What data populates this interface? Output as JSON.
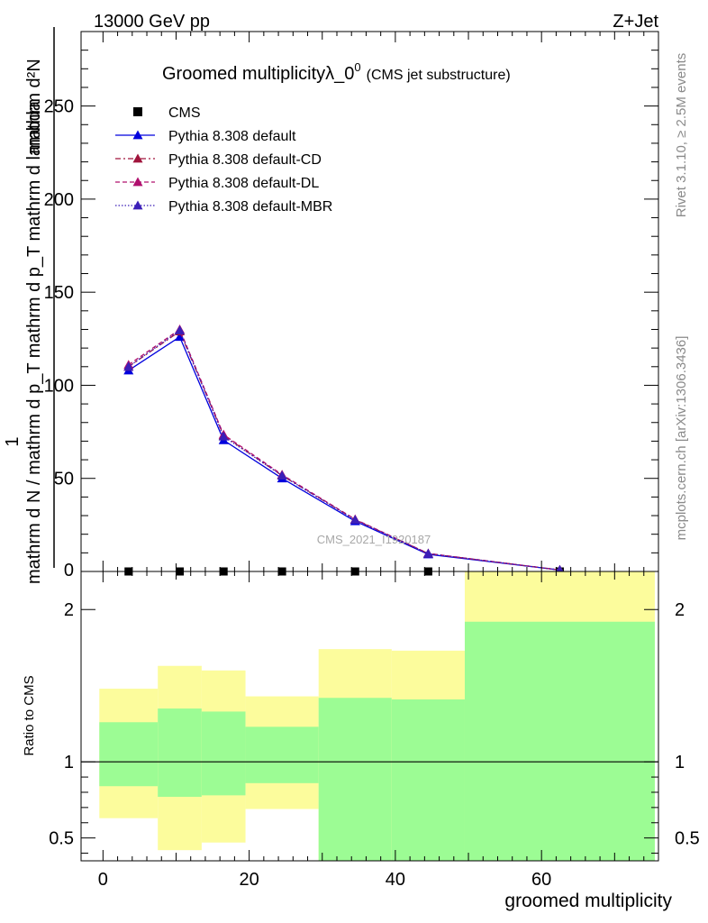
{
  "header": {
    "energy_label": "13000 GeV pp",
    "process_label": "Z+Jet"
  },
  "side_labels": {
    "rivet": "Rivet 3.1.10, ≥ 2.5M events",
    "mcplots": "mcplots.cern.ch [arXiv:1306.3436]"
  },
  "watermark": "CMS_2021_I1920187",
  "chart_data": [
    {
      "type": "line",
      "title": "Groomed multiplicityλ_0",
      "title_sup": "0",
      "title_suffix": "(CMS jet substructure)",
      "ylabel_numerator": "mathrm d²N",
      "ylabel_denominator": "mathrm d N / mathrm d p_T mathrm d p_T mathrm d lambda",
      "ylabel_prefix": "1",
      "xlim": [
        -3,
        76
      ],
      "ylim": [
        0,
        290
      ],
      "yticks": [
        "50",
        "100",
        "150",
        "200",
        "250"
      ],
      "ytick_values": [
        50,
        100,
        150,
        200,
        250
      ],
      "x": [
        3.5,
        10.5,
        16.5,
        24.5,
        34.5,
        44.5,
        62.5
      ],
      "series": [
        {
          "name": "CMS",
          "marker": "square",
          "color": "#000000",
          "values": [
            0,
            0,
            0,
            0,
            0,
            0,
            0
          ]
        },
        {
          "name": "Pythia 8.308 default",
          "marker": "triangle",
          "color": "#0000dd",
          "dash": "none",
          "values": [
            108,
            126,
            70.5,
            50,
            27,
            9.2,
            0.8
          ]
        },
        {
          "name": "Pythia 8.308 default-CD",
          "marker": "triangle",
          "color": "#a0143c",
          "dash": "6,3,2,3",
          "values": [
            110,
            129,
            73,
            51.5,
            27.8,
            9.6,
            0.8
          ]
        },
        {
          "name": "Pythia 8.308 default-DL",
          "marker": "triangle",
          "color": "#b0106e",
          "dash": "5,3",
          "values": [
            111,
            130,
            73.5,
            52,
            28,
            9.7,
            0.8
          ]
        },
        {
          "name": "Pythia 8.308 default-MBR",
          "marker": "triangle",
          "color": "#3b1fb8",
          "dash": "1.5,2",
          "values": [
            110,
            129.5,
            72.5,
            51.5,
            27.7,
            9.6,
            0.8
          ]
        }
      ]
    },
    {
      "type": "area",
      "ylabel": "Ratio to CMS",
      "xlabel": "groomed multiplicity",
      "xlim": [
        -3,
        76
      ],
      "ylim": [
        0.35,
        2.25
      ],
      "yticks": [
        "0.5",
        "1",
        "2"
      ],
      "ytick_values": [
        0.5,
        1,
        2
      ],
      "xticks": [
        "0",
        "20",
        "40",
        "60"
      ],
      "xtick_values": [
        0,
        20,
        40,
        60
      ],
      "bins": [
        {
          "lo": -0.5,
          "hi": 7.5,
          "inner": [
            0.84,
            1.26
          ],
          "outer": [
            0.63,
            1.48
          ]
        },
        {
          "lo": 7.5,
          "hi": 13.5,
          "inner": [
            0.77,
            1.35
          ],
          "outer": [
            0.42,
            1.63
          ]
        },
        {
          "lo": 13.5,
          "hi": 19.5,
          "inner": [
            0.78,
            1.33
          ],
          "outer": [
            0.47,
            1.6
          ]
        },
        {
          "lo": 19.5,
          "hi": 29.5,
          "inner": [
            0.86,
            1.23
          ],
          "outer": [
            0.69,
            1.43
          ]
        },
        {
          "lo": 29.5,
          "hi": 39.5,
          "inner": [
            0.35,
            1.42
          ],
          "outer": [
            0.35,
            1.74
          ]
        },
        {
          "lo": 39.5,
          "hi": 49.5,
          "inner": [
            0.35,
            1.41
          ],
          "outer": [
            0.35,
            1.73
          ]
        },
        {
          "lo": 49.5,
          "hi": 75.5,
          "inner": [
            0.35,
            1.92
          ],
          "outer": [
            0.35,
            2.25
          ]
        }
      ],
      "reference_value": 1,
      "inner_color": "#9cfc94",
      "outer_color": "#fcfc9c"
    }
  ]
}
